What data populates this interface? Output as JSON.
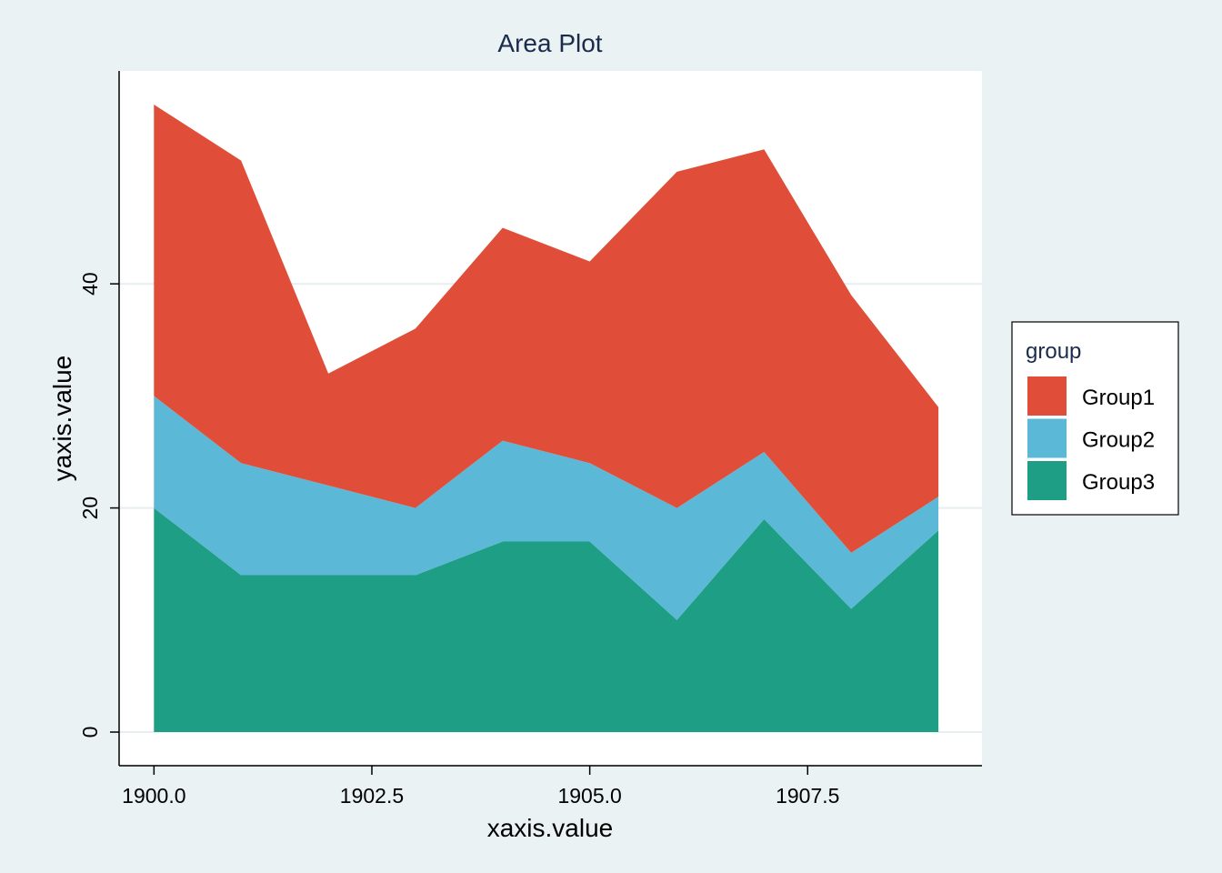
{
  "chart_data": {
    "type": "area",
    "stacked": true,
    "title": "Area Plot",
    "xlabel": "xaxis.value",
    "ylabel": "yaxis.value",
    "x": [
      1900,
      1901,
      1902,
      1903,
      1904,
      1905,
      1906,
      1907,
      1908,
      1909
    ],
    "xlim": [
      1899.6,
      1909.5
    ],
    "ylim": [
      -3,
      59
    ],
    "x_ticks": [
      1900,
      1902.5,
      1905,
      1907.5
    ],
    "x_tick_labels": [
      "1900.0",
      "1902.5",
      "1905.0",
      "1907.5"
    ],
    "y_ticks": [
      0,
      20,
      40
    ],
    "y_tick_labels": [
      "0",
      "20",
      "40"
    ],
    "grid": "horizontal",
    "legend": {
      "title": "group",
      "position": "right"
    },
    "series": [
      {
        "name": "Group1",
        "color": "#e04e39",
        "values": [
          26,
          27,
          10,
          16,
          19,
          18,
          30,
          27,
          23,
          8
        ]
      },
      {
        "name": "Group2",
        "color": "#5bb8d6",
        "values": [
          10,
          10,
          8,
          6,
          9,
          7,
          10,
          6,
          5,
          3
        ]
      },
      {
        "name": "Group3",
        "color": "#1f9e86",
        "values": [
          20,
          14,
          14,
          14,
          17,
          17,
          10,
          19,
          11,
          18
        ]
      }
    ]
  }
}
